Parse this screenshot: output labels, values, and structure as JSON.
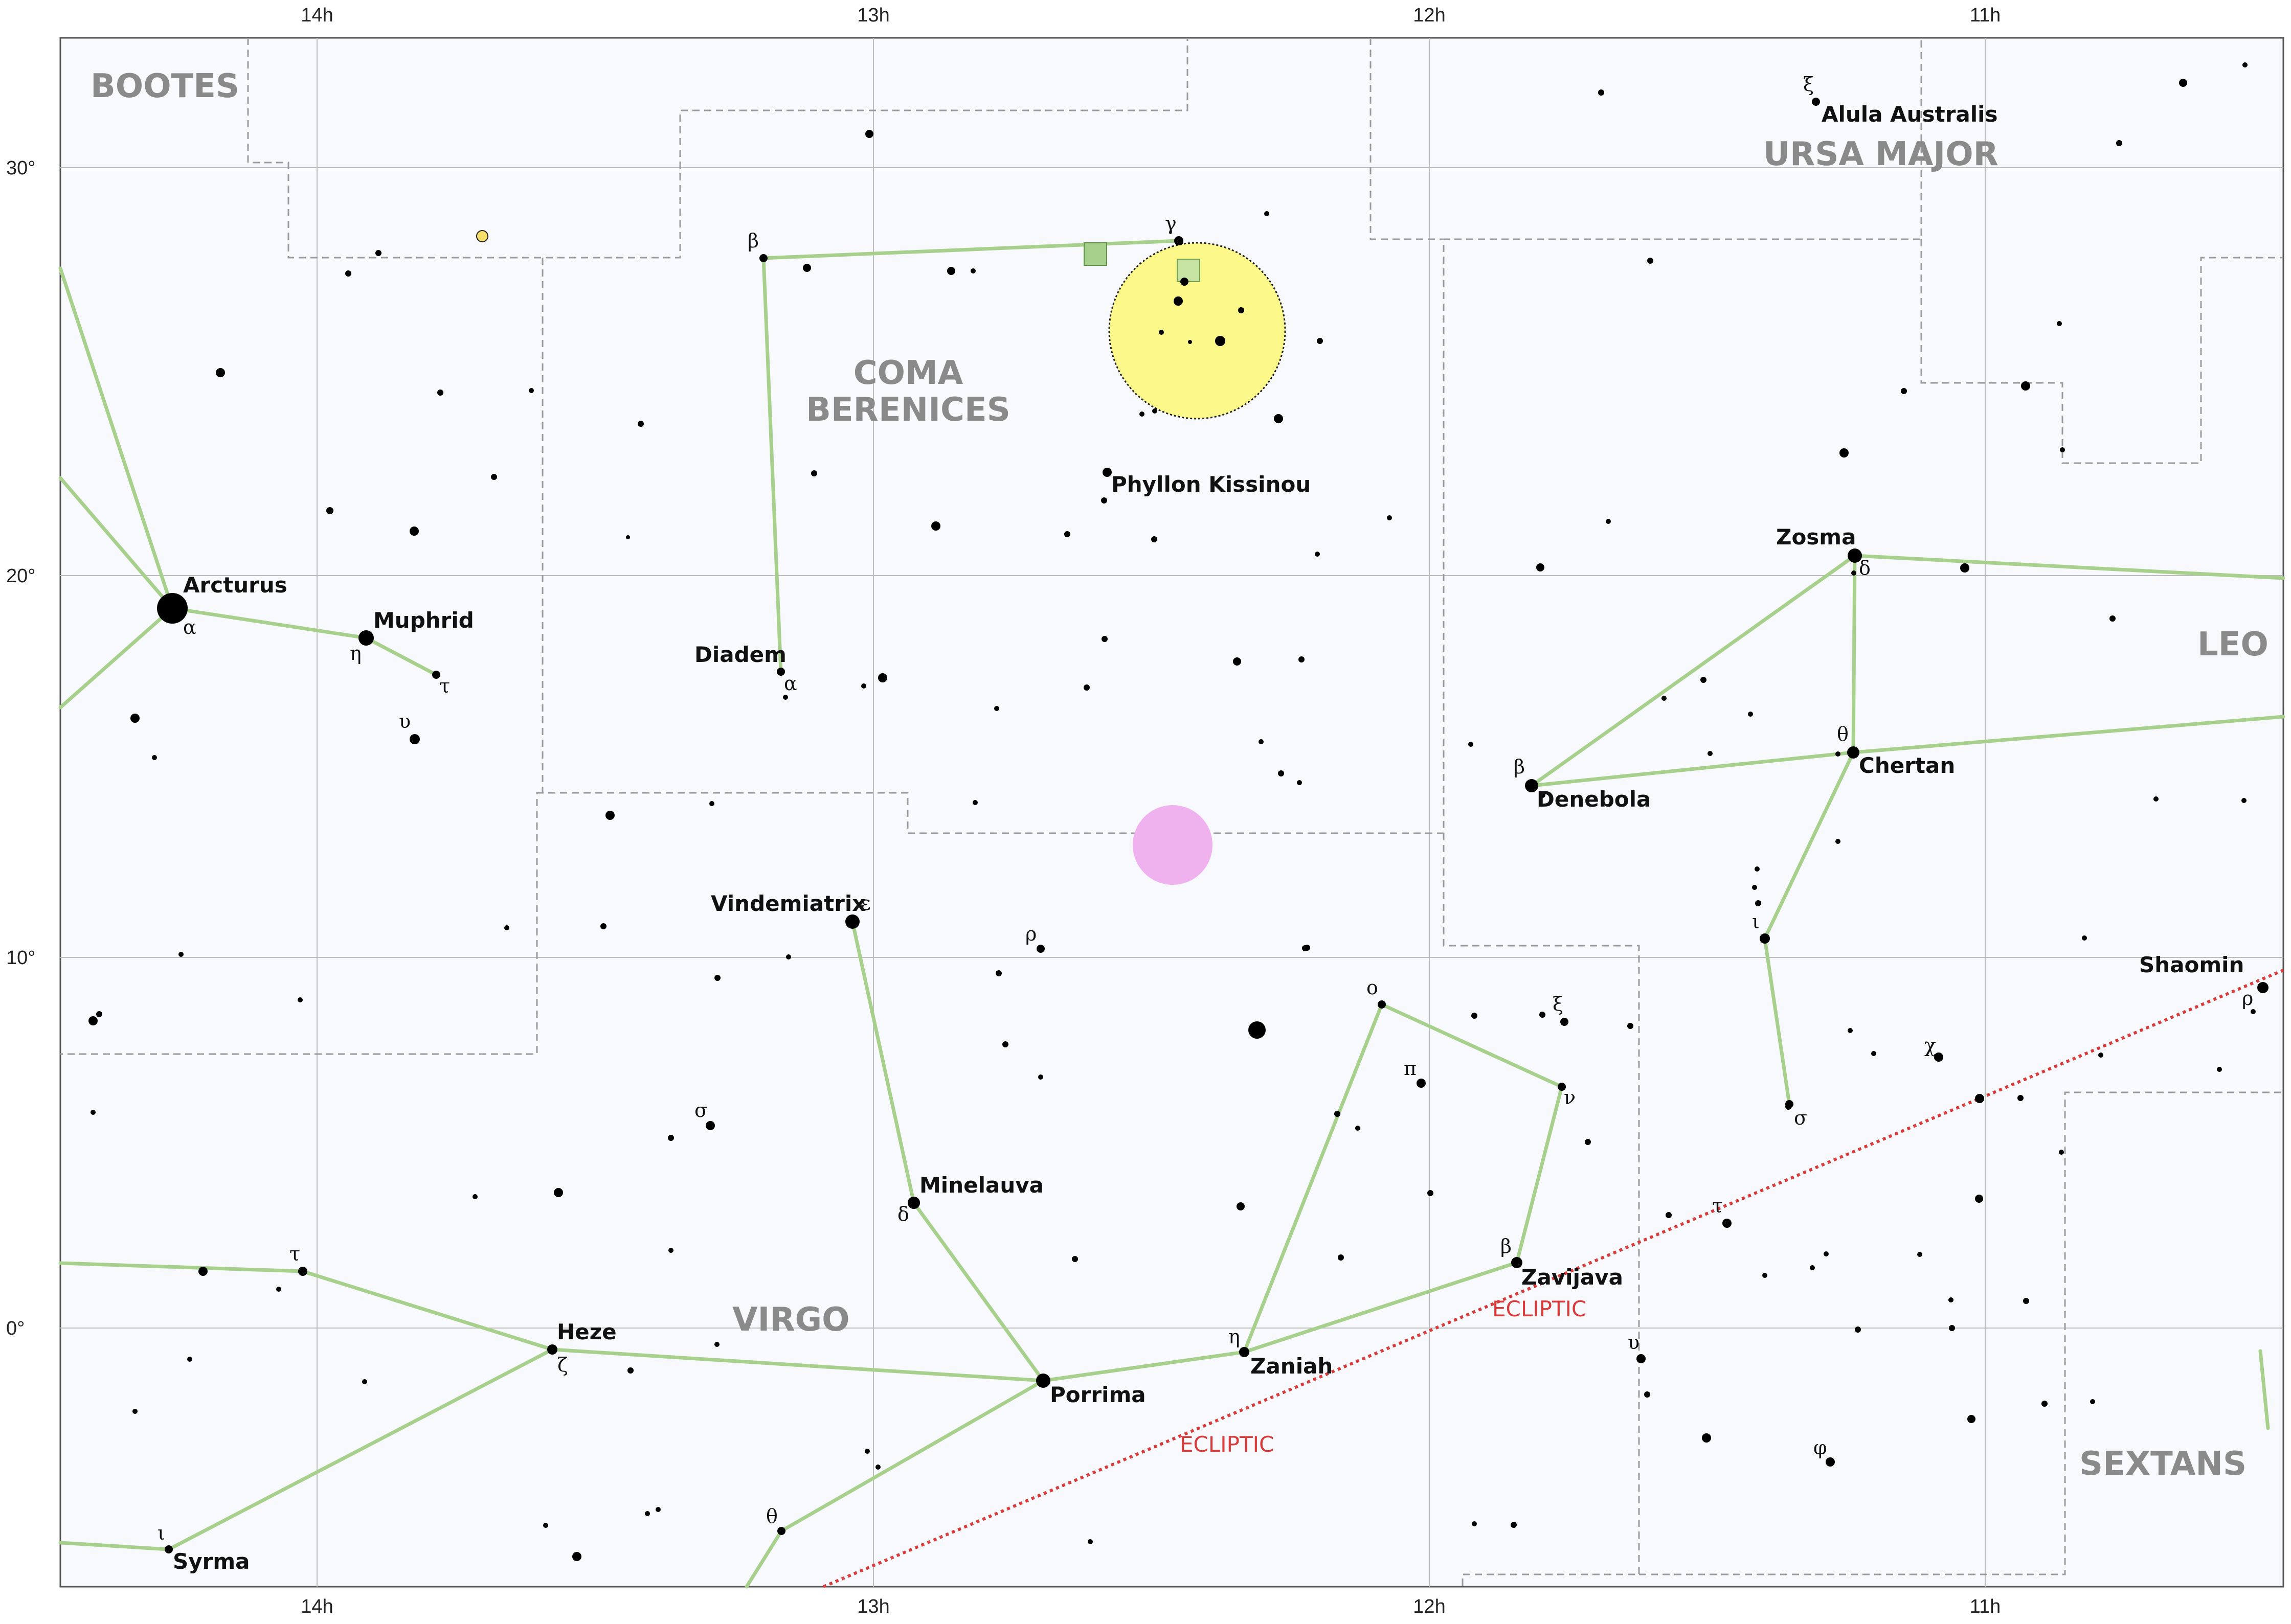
{
  "map": {
    "ra_labels": [
      "14h",
      "13h",
      "12h",
      "11h"
    ],
    "dec_labels": [
      "30°",
      "20°",
      "10°",
      "0°"
    ],
    "colors": {
      "background": "#f8f9fd",
      "grid": "#bdbdbd",
      "boundary": "#9a9a9a",
      "figure": "#a8d08d",
      "ecliptic": "#d93a3a",
      "cluster_fill": "#fdf88a",
      "galaxy_marker": "#f0b2ef",
      "label_grey": "#8a8a8a"
    },
    "constellations": [
      "BOOTES",
      "URSA MAJOR",
      "LEO",
      "SEXTANS",
      "VIRGO"
    ],
    "coma_name": {
      "line1": "COMA",
      "line2": "BERENICES"
    },
    "star_names": [
      "Arcturus",
      "Muphrid",
      "Diadem",
      "Phyllon Kissinou",
      "Alula Australis",
      "Zosma",
      "Chertan",
      "Denebola",
      "Vindemiatrix",
      "Minelauva",
      "Porrima",
      "Zaniah",
      "Zavijava",
      "Heze",
      "Syrma",
      "Shaomin"
    ],
    "greek_letters": [
      "α",
      "η",
      "τ",
      "υ",
      "β",
      "α",
      "γ",
      "ξ",
      "δ",
      "θ",
      "β",
      "ι",
      "σ",
      "ε",
      "ρ",
      "δ",
      "ο",
      "ξ",
      "π",
      "ν",
      "β",
      "η",
      "υ",
      "φ",
      "σ",
      "τ",
      "ζ",
      "θ",
      "ι",
      "χ",
      "ρ",
      "τ"
    ],
    "ecliptic_label": "ECLIPTIC",
    "icons": [
      "open-cluster-icon",
      "galaxy-icon",
      "planet-icon",
      "planetary-nebula-icon"
    ]
  }
}
